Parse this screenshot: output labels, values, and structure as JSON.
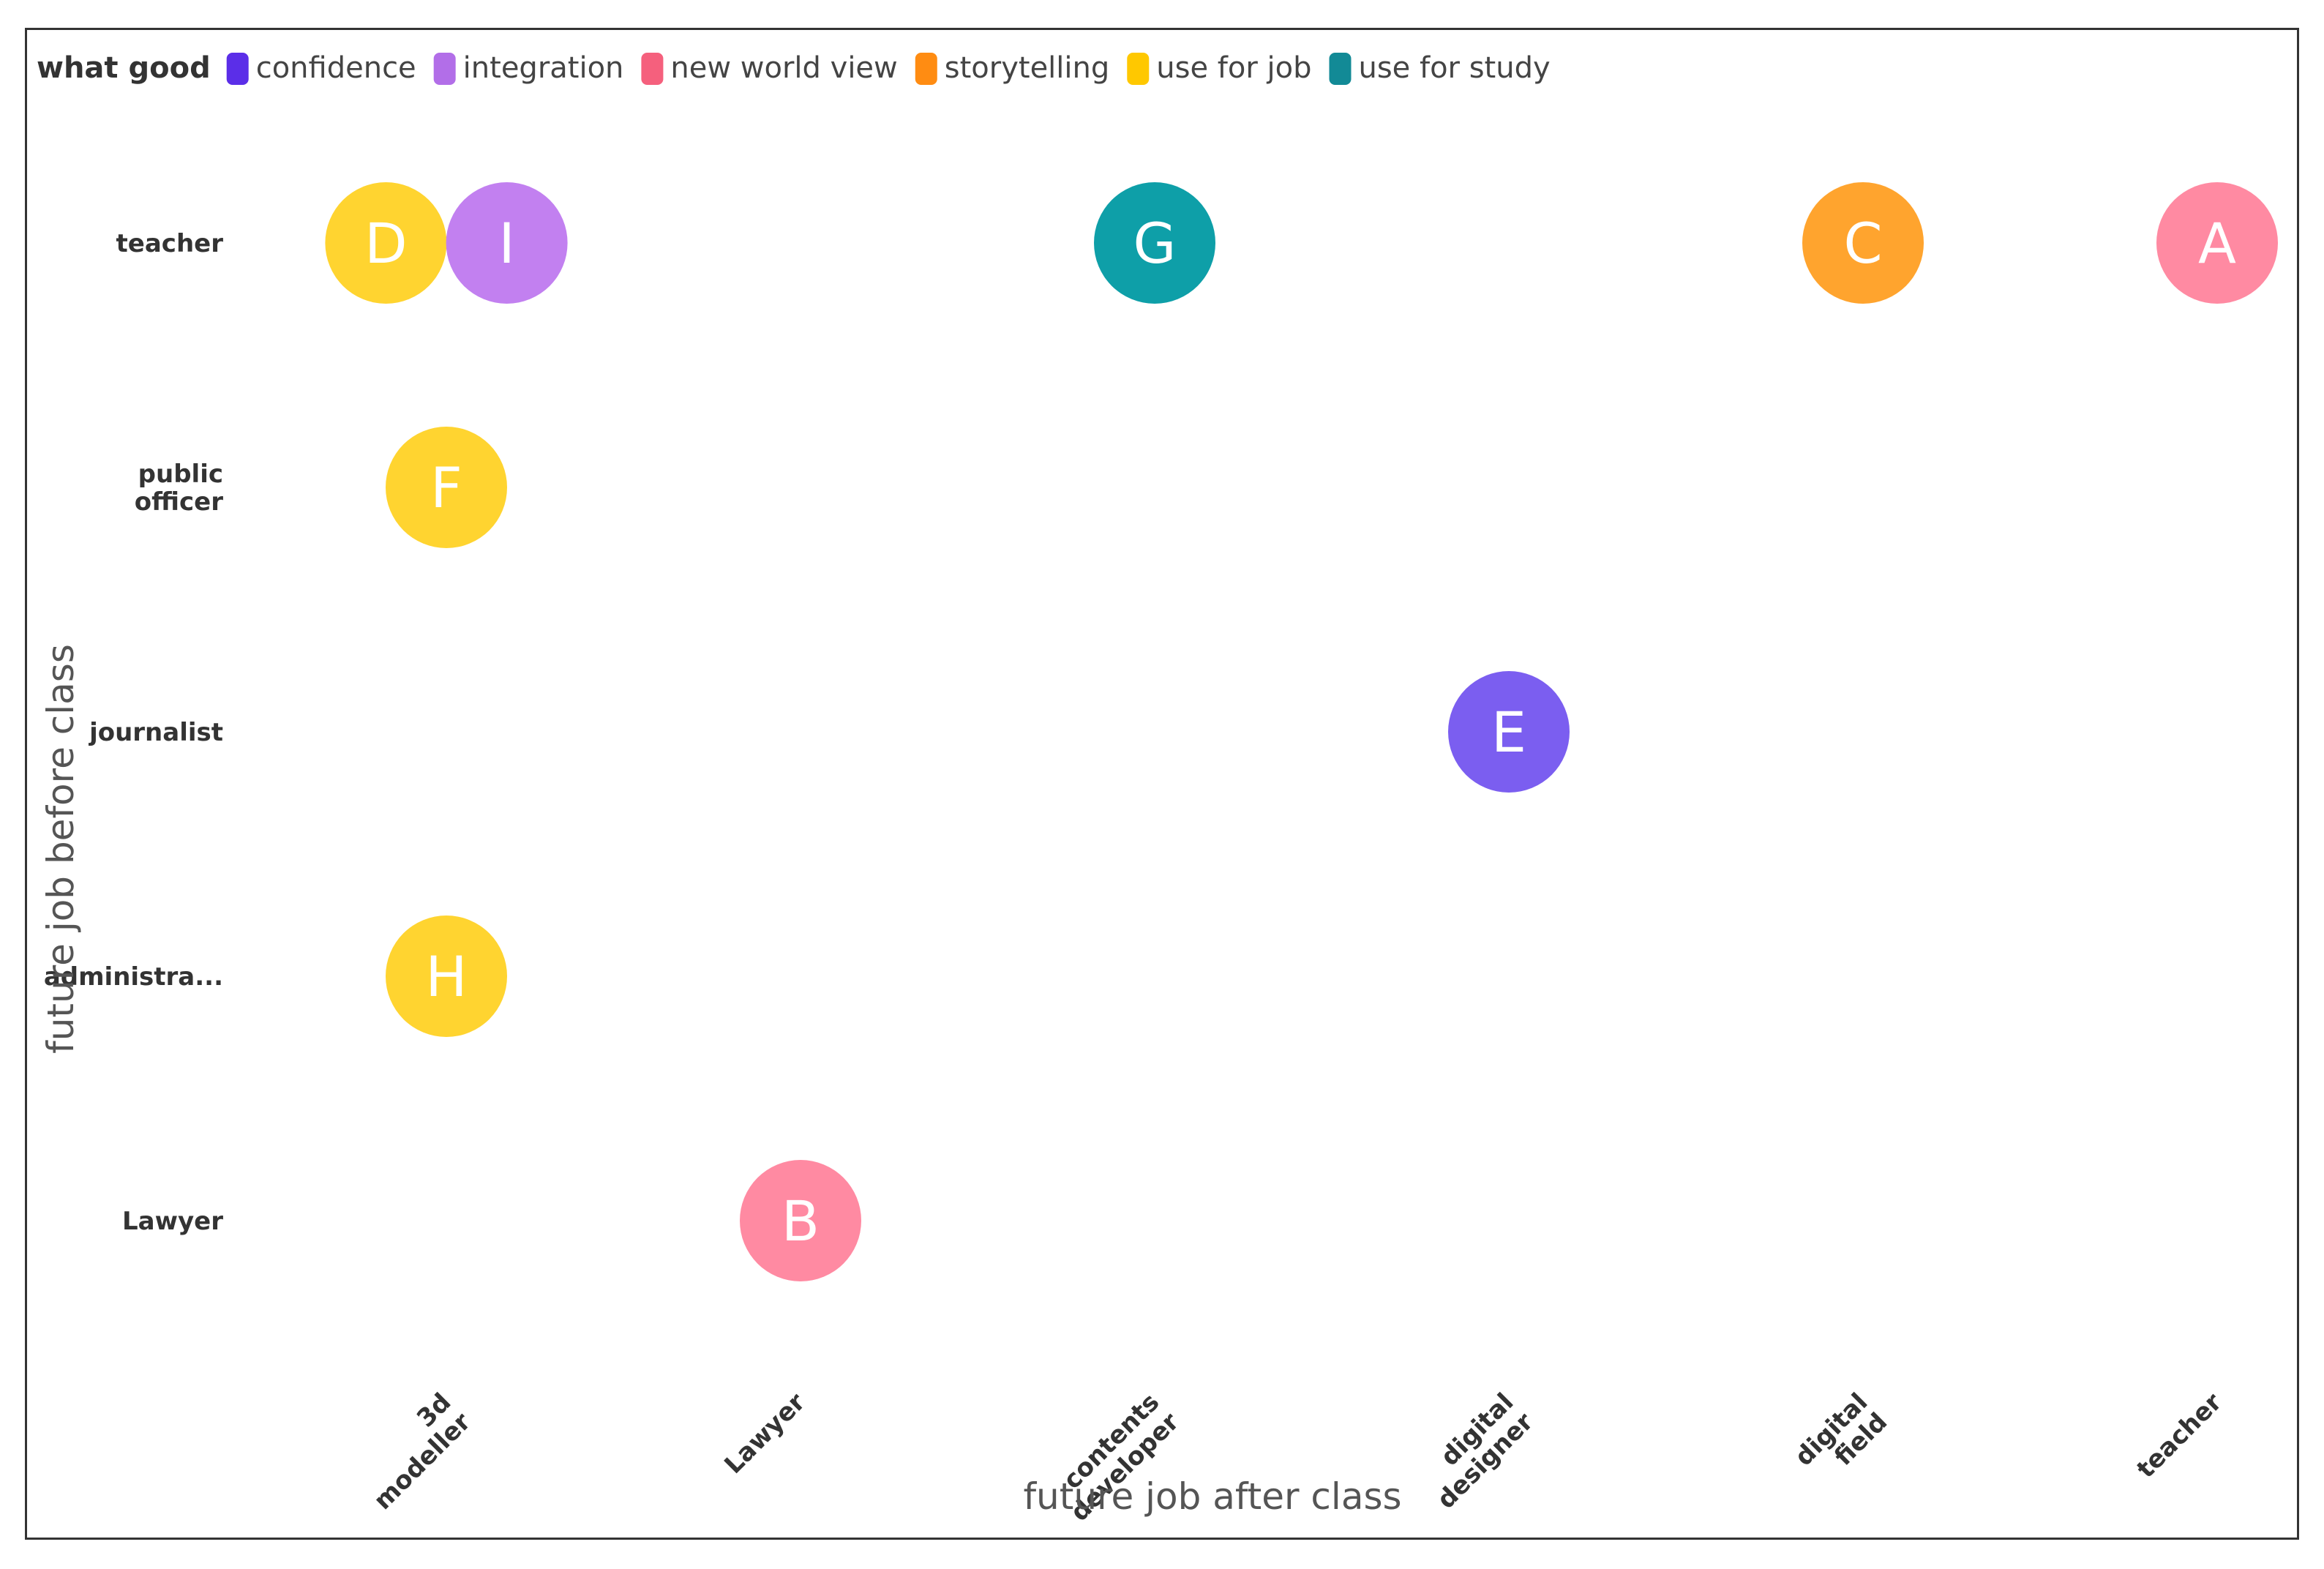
{
  "chart_data": {
    "type": "scatter",
    "xlabel": "future job after class",
    "ylabel": "future job before class",
    "x_categories": [
      "3d modeller",
      "Lawyer",
      "contents developer",
      "digital designer",
      "digital field",
      "teacher"
    ],
    "y_categories": [
      "teacher",
      "public officer",
      "journalist",
      "administra...",
      "Lawyer"
    ],
    "legend": {
      "title": "what good",
      "position": "top-left",
      "entries": [
        {
          "label": "confidence",
          "color": "#5b2ee8"
        },
        {
          "label": "integration",
          "color": "#b26ee8"
        },
        {
          "label": "new world view",
          "color": "#f5607d"
        },
        {
          "label": "storytelling",
          "color": "#ff8c12"
        },
        {
          "label": "use for job",
          "color": "#ffc800"
        },
        {
          "label": "use for study",
          "color": "#128a96"
        }
      ]
    },
    "points": [
      {
        "label": "D",
        "x": "3d modeller",
        "y": "teacher",
        "x_offset": -0.35,
        "group": "use for job",
        "color": "#ffd430"
      },
      {
        "label": "I",
        "x": "3d modeller",
        "y": "teacher",
        "x_offset": 0.35,
        "group": "integration",
        "color": "#c280f0"
      },
      {
        "label": "G",
        "x": "contents developer",
        "y": "teacher",
        "x_offset": 0,
        "group": "use for study",
        "color": "#0e9fa8"
      },
      {
        "label": "C",
        "x": "digital field",
        "y": "teacher",
        "x_offset": 0,
        "group": "storytelling",
        "color": "#ffa42e"
      },
      {
        "label": "A",
        "x": "teacher",
        "y": "teacher",
        "x_offset": 0,
        "group": "new world view",
        "color": "#ff8aa2"
      },
      {
        "label": "F",
        "x": "3d modeller",
        "y": "public officer",
        "x_offset": 0,
        "group": "use for job",
        "color": "#ffd430"
      },
      {
        "label": "E",
        "x": "digital designer",
        "y": "journalist",
        "x_offset": 0,
        "group": "confidence",
        "color": "#7b5ef0"
      },
      {
        "label": "H",
        "x": "3d modeller",
        "y": "administra...",
        "x_offset": 0,
        "group": "use for job",
        "color": "#ffd430"
      },
      {
        "label": "B",
        "x": "Lawyer",
        "y": "Lawyer",
        "x_offset": 0,
        "group": "new world view",
        "color": "#ff8aa2"
      }
    ]
  }
}
